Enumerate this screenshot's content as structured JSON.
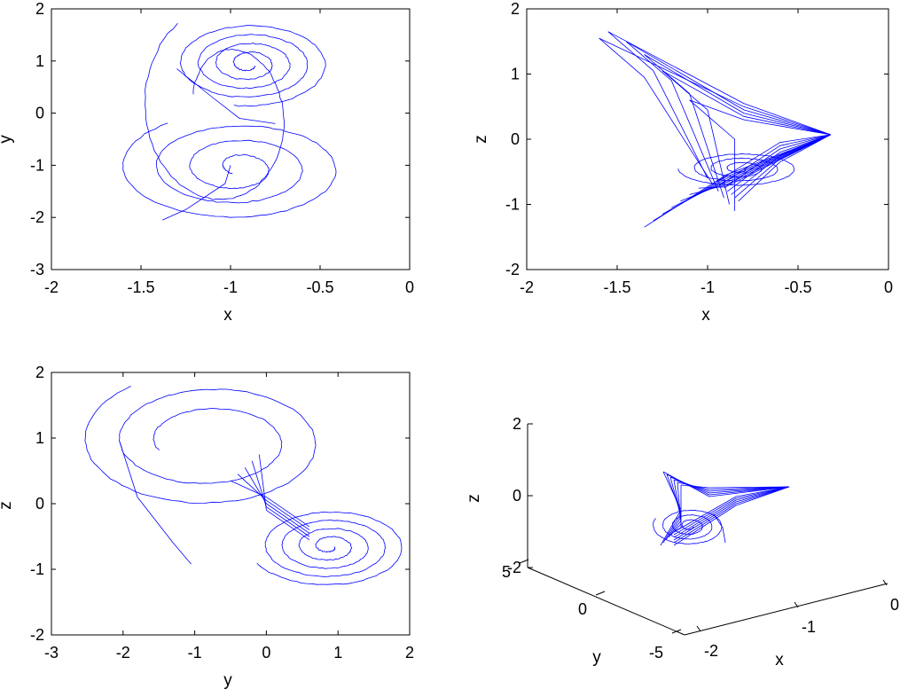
{
  "chart_data": [
    {
      "type": "line",
      "title": "",
      "xlabel": "x",
      "ylabel": "y",
      "xlim": [
        -2,
        0
      ],
      "ylim": [
        -3,
        2
      ],
      "xticks": [
        "-2",
        "-1.5",
        "-1",
        "-0.5",
        "0"
      ],
      "yticks": [
        "-3",
        "-2",
        "-1",
        "0",
        "1",
        "2"
      ],
      "series": [
        {
          "color": "#0000ff",
          "description": "phase portrait trajectory"
        }
      ]
    },
    {
      "type": "line",
      "title": "",
      "xlabel": "x",
      "ylabel": "z",
      "xlim": [
        -2,
        0
      ],
      "ylim": [
        -2,
        2
      ],
      "xticks": [
        "-2",
        "-1.5",
        "-1",
        "-0.5",
        "0"
      ],
      "yticks": [
        "-2",
        "-1",
        "0",
        "1",
        "2"
      ],
      "series": [
        {
          "color": "#0000ff",
          "description": "phase portrait trajectory"
        }
      ]
    },
    {
      "type": "line",
      "title": "",
      "xlabel": "y",
      "ylabel": "z",
      "xlim": [
        -3,
        2
      ],
      "ylim": [
        -2,
        2
      ],
      "xticks": [
        "-3",
        "-2",
        "-1",
        "0",
        "1",
        "2"
      ],
      "yticks": [
        "-2",
        "-1",
        "0",
        "1",
        "2"
      ],
      "series": [
        {
          "color": "#0000ff",
          "description": "phase portrait trajectory"
        }
      ]
    },
    {
      "type": "line",
      "projection": "3d",
      "title": "",
      "xlabel": "x",
      "ylabel": "y",
      "zlabel": "z",
      "xlim": [
        -2,
        0
      ],
      "ylim": [
        -5,
        5
      ],
      "zlim": [
        -2,
        2
      ],
      "xticks": [
        "-2",
        "-1",
        "0"
      ],
      "yticks": [
        "-5",
        "0",
        "5"
      ],
      "zticks": [
        "-2",
        "0",
        "2"
      ],
      "series": [
        {
          "color": "#0000ff",
          "description": "3D trajectory"
        }
      ]
    }
  ]
}
